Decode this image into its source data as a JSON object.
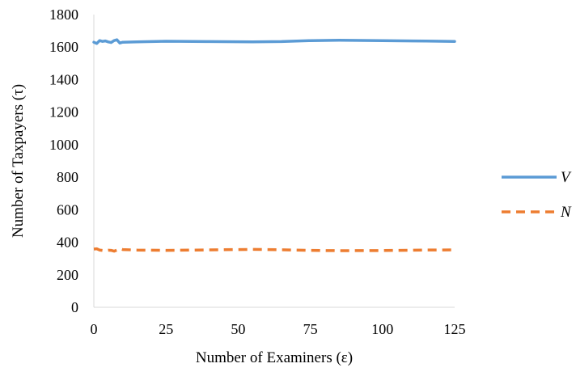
{
  "chart_data": {
    "type": "line",
    "xlabel": "Number of Examiners (ε)",
    "ylabel": "Number of Taxpayers (τ)",
    "xlim": [
      0,
      125
    ],
    "ylim": [
      0,
      1800
    ],
    "xticks": [
      0,
      25,
      50,
      75,
      100,
      125
    ],
    "yticks": [
      0,
      200,
      400,
      600,
      800,
      1000,
      1200,
      1400,
      1600,
      1800
    ],
    "grid": false,
    "legend_position": "right",
    "series": [
      {
        "name": "V",
        "color": "#5B9BD5",
        "dash": "solid",
        "x": [
          0,
          1,
          2,
          3,
          4,
          5,
          6,
          7,
          8,
          9,
          10,
          15,
          25,
          40,
          55,
          65,
          75,
          85,
          100,
          115,
          125
        ],
        "y": [
          1630,
          1622,
          1640,
          1635,
          1638,
          1632,
          1628,
          1640,
          1645,
          1625,
          1630,
          1632,
          1636,
          1634,
          1632,
          1634,
          1640,
          1642,
          1640,
          1637,
          1635
        ]
      },
      {
        "name": "N",
        "color": "#ED7D31",
        "dash": "dashed",
        "x": [
          0,
          1,
          2,
          3,
          4,
          5,
          6,
          7,
          8,
          9,
          10,
          15,
          25,
          40,
          55,
          65,
          75,
          85,
          100,
          115,
          125
        ],
        "y": [
          358,
          360,
          352,
          350,
          349,
          351,
          350,
          345,
          352,
          360,
          355,
          352,
          350,
          353,
          356,
          354,
          350,
          348,
          349,
          352,
          353
        ]
      }
    ]
  }
}
